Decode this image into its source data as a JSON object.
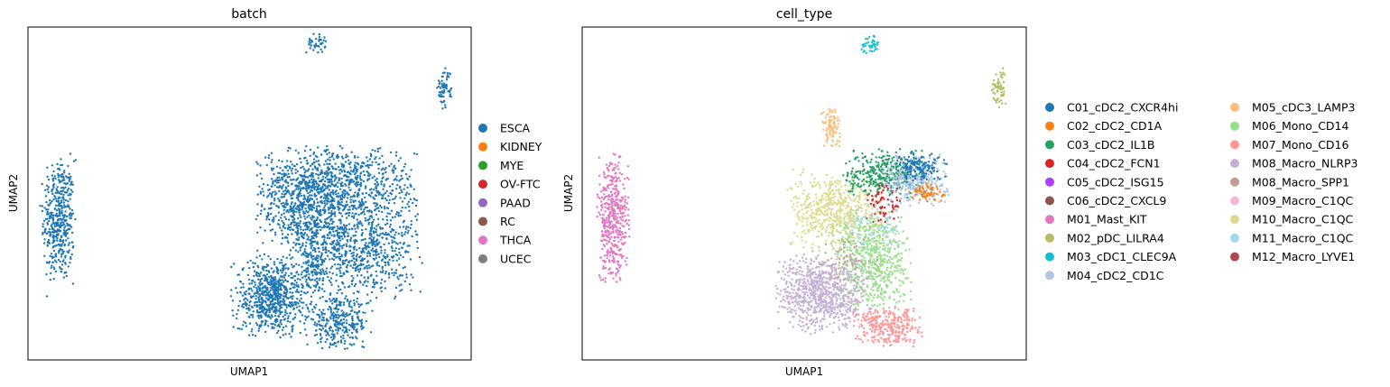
{
  "panels": [
    {
      "title": "batch",
      "xlabel": "UMAP1",
      "ylabel": "UMAP2",
      "legend": [
        {
          "label": "ESCA",
          "color": "#1f77b4"
        },
        {
          "label": "KIDNEY",
          "color": "#ff7f0e"
        },
        {
          "label": "MYE",
          "color": "#2ca02c"
        },
        {
          "label": "OV-FTC",
          "color": "#d62728"
        },
        {
          "label": "PAAD",
          "color": "#9467bd"
        },
        {
          "label": "RC",
          "color": "#8c564b"
        },
        {
          "label": "THCA",
          "color": "#e377c2"
        },
        {
          "label": "UCEC",
          "color": "#7f7f7f"
        }
      ]
    },
    {
      "title": "cell_type",
      "xlabel": "UMAP1",
      "ylabel": "UMAP2",
      "legend": [
        {
          "label": "C01_cDC2_CXCR4hi",
          "color": "#1f77b4"
        },
        {
          "label": "C02_cDC2_CD1A",
          "color": "#ff7f0e"
        },
        {
          "label": "C03_cDC2_IL1B",
          "color": "#279e68"
        },
        {
          "label": "C04_cDC2_FCN1",
          "color": "#d62728"
        },
        {
          "label": "C05_cDC2_ISG15",
          "color": "#aa40fc"
        },
        {
          "label": "C06_cDC2_CXCL9",
          "color": "#8c564b"
        },
        {
          "label": "M01_Mast_KIT",
          "color": "#e377c2"
        },
        {
          "label": "M02_pDC_LILRA4",
          "color": "#b5bd61"
        },
        {
          "label": "M03_cDC1_CLEC9A",
          "color": "#17becf"
        },
        {
          "label": "M04_cDC2_CD1C",
          "color": "#aec7e8"
        },
        {
          "label": "M05_cDC3_LAMP3",
          "color": "#ffbb78"
        },
        {
          "label": "M06_Mono_CD14",
          "color": "#98df8a"
        },
        {
          "label": "M07_Mono_CD16",
          "color": "#ff9896"
        },
        {
          "label": "M08_Macro_NLRP3",
          "color": "#c5b0d5"
        },
        {
          "label": "M08_Macro_SPP1",
          "color": "#c49c94"
        },
        {
          "label": "M09_Macro_C1QC",
          "color": "#f7b6d2"
        },
        {
          "label": "M10_Macro_C1QC",
          "color": "#dbdb8d"
        },
        {
          "label": "M11_Macro_C1QC",
          "color": "#9edae5"
        },
        {
          "label": "M12_Macro_LYVE1",
          "color": "#ad494a"
        }
      ]
    }
  ],
  "chart_data": [
    {
      "type": "scatter",
      "title": "batch",
      "xlabel": "UMAP1",
      "ylabel": "UMAP2",
      "grid": false,
      "ticks": false,
      "legend_position": "right",
      "clusters": [
        {
          "group": "ESCA",
          "cx": 0.07,
          "cy": 0.42,
          "rx": 0.025,
          "ry": 0.13,
          "n": 450
        },
        {
          "group": "ESCA",
          "cx": 0.65,
          "cy": 0.27,
          "rx": 0.025,
          "ry": 0.04,
          "n": 90
        },
        {
          "group": "ESCA",
          "cx": 0.65,
          "cy": 0.95,
          "rx": 0.015,
          "ry": 0.02,
          "n": 40
        },
        {
          "group": "ESCA",
          "cx": 0.94,
          "cy": 0.82,
          "rx": 0.012,
          "ry": 0.04,
          "n": 60
        },
        {
          "group": "ESCA",
          "cx": 0.62,
          "cy": 0.45,
          "rx": 0.07,
          "ry": 0.09,
          "n": 500
        },
        {
          "group": "ESCA",
          "cx": 0.74,
          "cy": 0.35,
          "rx": 0.1,
          "ry": 0.12,
          "n": 900
        },
        {
          "group": "ESCA",
          "cx": 0.55,
          "cy": 0.19,
          "rx": 0.06,
          "ry": 0.08,
          "n": 700
        },
        {
          "group": "ESCA",
          "cx": 0.7,
          "cy": 0.11,
          "rx": 0.05,
          "ry": 0.05,
          "n": 300
        },
        {
          "group": "ESCA",
          "cx": 0.7,
          "cy": 0.54,
          "rx": 0.12,
          "ry": 0.07,
          "n": 700
        }
      ]
    },
    {
      "type": "scatter",
      "title": "cell_type",
      "xlabel": "UMAP1",
      "ylabel": "UMAP2",
      "grid": false,
      "ticks": false,
      "legend_position": "right",
      "clusters": [
        {
          "group": "M01_Mast_KIT",
          "cx": 0.07,
          "cy": 0.42,
          "rx": 0.025,
          "ry": 0.13,
          "n": 450
        },
        {
          "group": "M05_cDC3_LAMP3",
          "cx": 0.56,
          "cy": 0.7,
          "rx": 0.015,
          "ry": 0.04,
          "n": 90
        },
        {
          "group": "M03_cDC1_CLEC9A",
          "cx": 0.65,
          "cy": 0.95,
          "rx": 0.015,
          "ry": 0.02,
          "n": 40
        },
        {
          "group": "M02_pDC_LILRA4",
          "cx": 0.94,
          "cy": 0.82,
          "rx": 0.012,
          "ry": 0.04,
          "n": 60
        },
        {
          "group": "M10_Macro_C1QC",
          "cx": 0.57,
          "cy": 0.45,
          "rx": 0.07,
          "ry": 0.08,
          "n": 550
        },
        {
          "group": "M06_Mono_CD14",
          "cx": 0.65,
          "cy": 0.3,
          "rx": 0.06,
          "ry": 0.1,
          "n": 600
        },
        {
          "group": "M08_Macro_NLRP3",
          "cx": 0.54,
          "cy": 0.2,
          "rx": 0.07,
          "ry": 0.08,
          "n": 800
        },
        {
          "group": "M07_Mono_CD16",
          "cx": 0.69,
          "cy": 0.1,
          "rx": 0.05,
          "ry": 0.04,
          "n": 300
        },
        {
          "group": "C03_cDC2_IL1B",
          "cx": 0.68,
          "cy": 0.56,
          "rx": 0.06,
          "ry": 0.05,
          "n": 350
        },
        {
          "group": "M04_cDC2_CD1C",
          "cx": 0.75,
          "cy": 0.54,
          "rx": 0.05,
          "ry": 0.05,
          "n": 300
        },
        {
          "group": "C01_cDC2_CXCR4hi",
          "cx": 0.76,
          "cy": 0.58,
          "rx": 0.04,
          "ry": 0.03,
          "n": 150
        },
        {
          "group": "C02_cDC2_CD1A",
          "cx": 0.78,
          "cy": 0.5,
          "rx": 0.03,
          "ry": 0.02,
          "n": 60
        },
        {
          "group": "C04_cDC2_FCN1",
          "cx": 0.68,
          "cy": 0.47,
          "rx": 0.03,
          "ry": 0.04,
          "n": 70
        },
        {
          "group": "M11_Macro_C1QC",
          "cx": 0.66,
          "cy": 0.4,
          "rx": 0.05,
          "ry": 0.05,
          "n": 80
        },
        {
          "group": "M08_Macro_SPP1",
          "cx": 0.6,
          "cy": 0.3,
          "rx": 0.05,
          "ry": 0.05,
          "n": 40
        }
      ]
    }
  ]
}
